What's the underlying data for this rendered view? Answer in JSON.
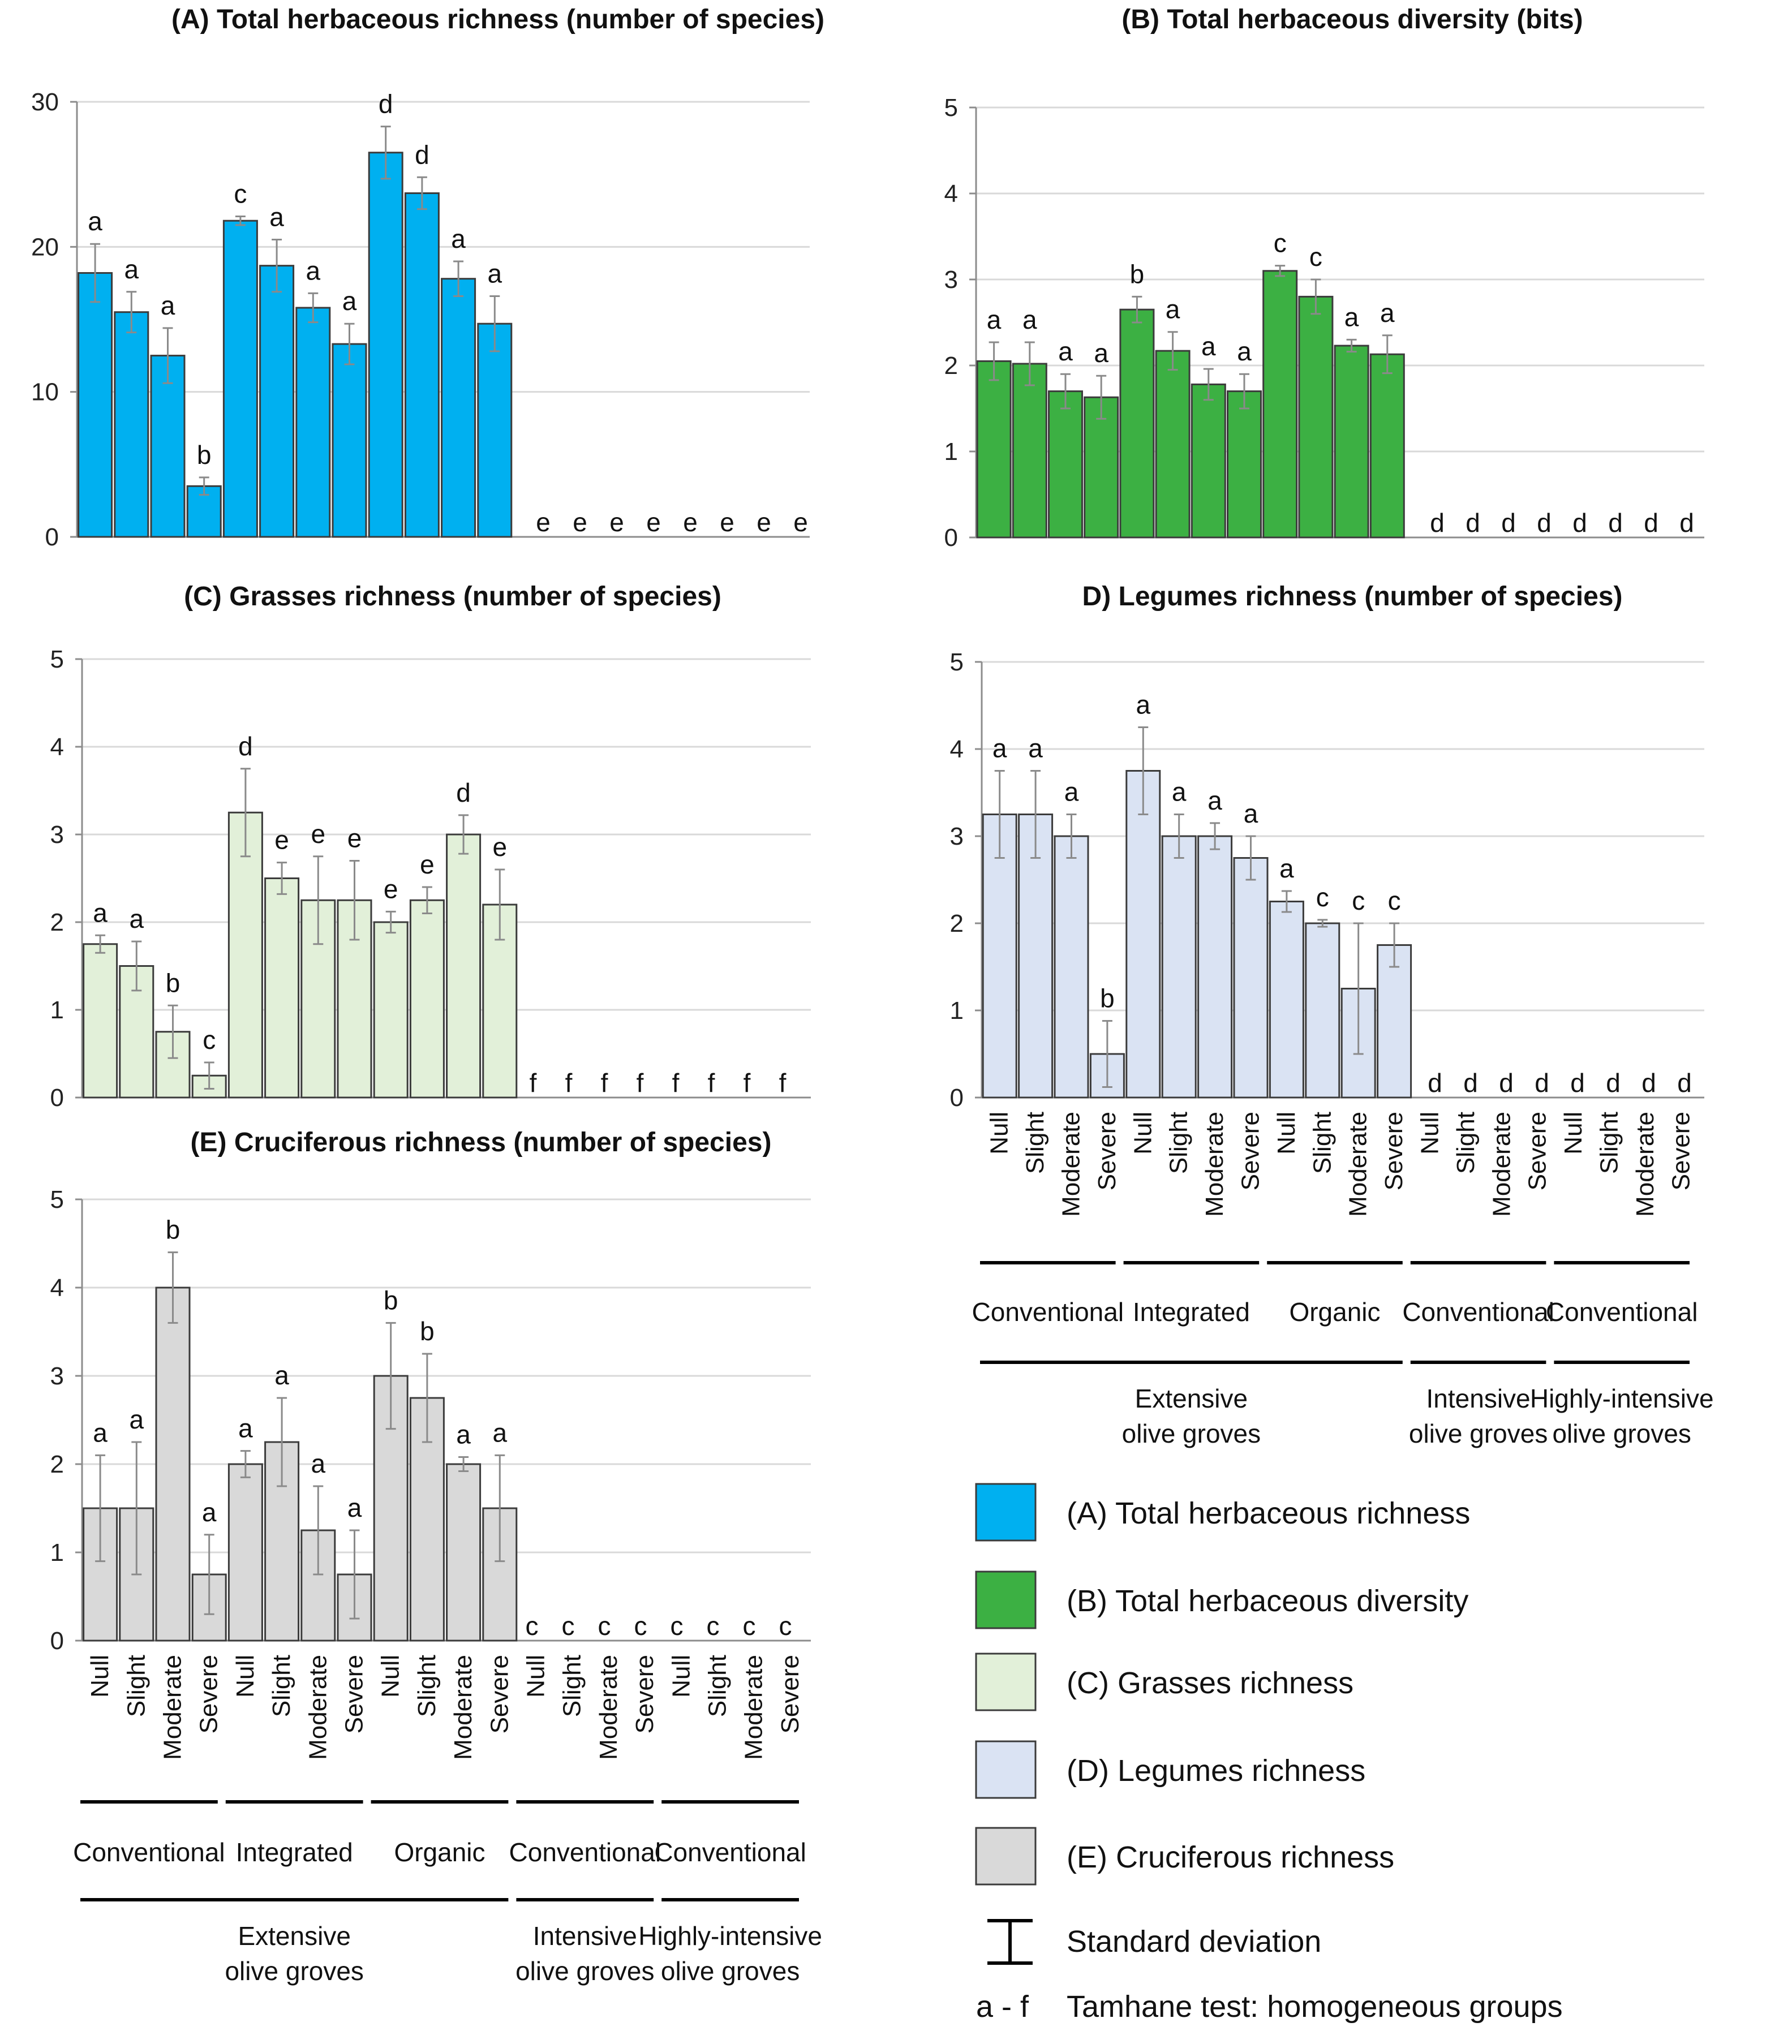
{
  "categories": [
    "Null",
    "Slight",
    "Moderate",
    "Severe",
    "Null",
    "Slight",
    "Moderate",
    "Severe",
    "Null",
    "Slight",
    "Moderate",
    "Severe",
    "Null",
    "Slight",
    "Moderate",
    "Severe",
    "Null",
    "Slight",
    "Moderate",
    "Severe"
  ],
  "management_labels": [
    "Conventional",
    "Integrated",
    "Organic",
    "Conventional",
    "Conventional"
  ],
  "system_labels": [
    [
      "Extensive",
      "olive groves"
    ],
    [
      "Intensive",
      "olive groves"
    ],
    [
      "Highly-intensive",
      "olive groves"
    ]
  ],
  "colors": {
    "A": "#00b0f0",
    "B": "#3cb043",
    "C": "#e2f0d9",
    "D": "#dae3f3",
    "E": "#d9d9d9",
    "edge": "#3b3b3b",
    "grid": "#d9d9d9",
    "axis": "#8c8c8c"
  },
  "legend": {
    "items": [
      {
        "key": "A",
        "label": "(A) Total herbaceous richness"
      },
      {
        "key": "B",
        "label": "(B) Total herbaceous diversity"
      },
      {
        "key": "C",
        "label": "(C) Grasses richness"
      },
      {
        "key": "D",
        "label": "(D) Legumes richness"
      },
      {
        "key": "E",
        "label": "(E) Cruciferous richness"
      }
    ],
    "std_label": "Standard deviation",
    "letters_key": "a - f",
    "letters_label": "Tamhane test: homogeneous groups"
  },
  "chart_data": [
    {
      "id": "A",
      "type": "bar",
      "title": "(A) Total herbaceous richness (number of species)",
      "ylim": [
        0,
        30
      ],
      "yticks": [
        0,
        10,
        20,
        30
      ],
      "values": [
        18.2,
        15.5,
        12.5,
        3.5,
        21.8,
        18.7,
        15.8,
        13.3,
        26.5,
        23.7,
        17.8,
        14.7,
        0,
        0,
        0,
        0,
        0,
        0,
        0,
        0
      ],
      "errors": [
        2.0,
        1.4,
        1.9,
        0.6,
        0.3,
        1.8,
        1.0,
        1.4,
        1.8,
        1.1,
        1.2,
        1.9,
        0,
        0,
        0,
        0,
        0,
        0,
        0,
        0
      ],
      "letters": [
        "a",
        "a",
        "a",
        "b",
        "c",
        "a",
        "a",
        "a",
        "d",
        "d",
        "a",
        "a",
        "e",
        "e",
        "e",
        "e",
        "e",
        "e",
        "e",
        "e"
      ]
    },
    {
      "id": "B",
      "type": "bar",
      "title": "(B) Total herbaceous diversity (bits)",
      "ylim": [
        0,
        5
      ],
      "yticks": [
        0,
        1,
        2,
        3,
        4,
        5
      ],
      "values": [
        2.05,
        2.02,
        1.7,
        1.63,
        2.65,
        2.17,
        1.78,
        1.7,
        3.1,
        2.8,
        2.23,
        2.13,
        0,
        0,
        0,
        0,
        0,
        0,
        0,
        0
      ],
      "errors": [
        0.22,
        0.25,
        0.2,
        0.25,
        0.15,
        0.22,
        0.18,
        0.2,
        0.06,
        0.2,
        0.07,
        0.22,
        0,
        0,
        0,
        0,
        0,
        0,
        0,
        0
      ],
      "letters": [
        "a",
        "a",
        "a",
        "a",
        "b",
        "a",
        "a",
        "a",
        "c",
        "c",
        "a",
        "a",
        "d",
        "d",
        "d",
        "d",
        "d",
        "d",
        "d",
        "d"
      ]
    },
    {
      "id": "C",
      "type": "bar",
      "title": "(C) Grasses richness (number of species)",
      "ylim": [
        0,
        5
      ],
      "yticks": [
        0,
        1,
        2,
        3,
        4,
        5
      ],
      "values": [
        1.75,
        1.5,
        0.75,
        0.25,
        3.25,
        2.5,
        2.25,
        2.25,
        2.0,
        2.25,
        3.0,
        2.2,
        0,
        0,
        0,
        0,
        0,
        0,
        0,
        0
      ],
      "errors": [
        0.1,
        0.28,
        0.3,
        0.15,
        0.5,
        0.18,
        0.5,
        0.45,
        0.12,
        0.15,
        0.22,
        0.4,
        0,
        0,
        0,
        0,
        0,
        0,
        0,
        0
      ],
      "letters": [
        "a",
        "a",
        "b",
        "c",
        "d",
        "e",
        "e",
        "e",
        "e",
        "e",
        "d",
        "e",
        "f",
        "f",
        "f",
        "f",
        "f",
        "f",
        "f",
        "f"
      ]
    },
    {
      "id": "D",
      "type": "bar",
      "title": "D) Legumes richness (number of species)",
      "ylim": [
        0,
        5
      ],
      "yticks": [
        0,
        1,
        2,
        3,
        4,
        5
      ],
      "values": [
        3.25,
        3.25,
        3.0,
        0.5,
        3.75,
        3.0,
        3.0,
        2.75,
        2.25,
        2.0,
        1.25,
        1.75,
        0,
        0,
        0,
        0,
        0,
        0,
        0,
        0
      ],
      "errors": [
        0.5,
        0.5,
        0.25,
        0.38,
        0.5,
        0.25,
        0.15,
        0.25,
        0.12,
        0.04,
        0.75,
        0.25,
        0,
        0,
        0,
        0,
        0,
        0,
        0,
        0
      ],
      "letters": [
        "a",
        "a",
        "a",
        "b",
        "a",
        "a",
        "a",
        "a",
        "a",
        "c",
        "c",
        "c",
        "d",
        "d",
        "d",
        "d",
        "d",
        "d",
        "d",
        "d"
      ]
    },
    {
      "id": "E",
      "type": "bar",
      "title": "(E) Cruciferous richness (number of species)",
      "ylim": [
        0,
        5
      ],
      "yticks": [
        0,
        1,
        2,
        3,
        4,
        5
      ],
      "values": [
        1.5,
        1.5,
        4.0,
        0.75,
        2.0,
        2.25,
        1.25,
        0.75,
        3.0,
        2.75,
        2.0,
        1.5,
        0,
        0,
        0,
        0,
        0,
        0,
        0,
        0
      ],
      "errors": [
        0.6,
        0.75,
        0.4,
        0.45,
        0.15,
        0.5,
        0.5,
        0.5,
        0.6,
        0.5,
        0.08,
        0.6,
        0,
        0,
        0,
        0,
        0,
        0,
        0,
        0
      ],
      "letters": [
        "a",
        "a",
        "b",
        "a",
        "a",
        "a",
        "a",
        "a",
        "b",
        "b",
        "a",
        "a",
        "c",
        "c",
        "c",
        "c",
        "c",
        "c",
        "c",
        "c"
      ]
    }
  ]
}
